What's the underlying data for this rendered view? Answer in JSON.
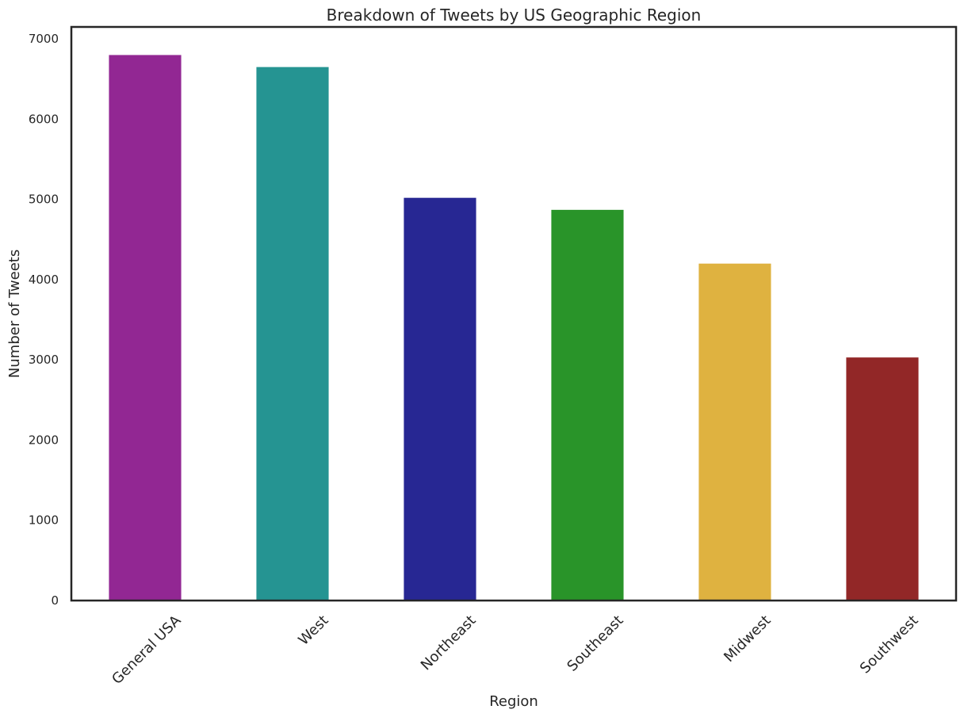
{
  "chart_data": {
    "type": "bar",
    "title": "Breakdown of Tweets by US Geographic Region",
    "xlabel": "Region",
    "ylabel": "Number of Tweets",
    "categories": [
      "General USA",
      "West",
      "Northeast",
      "Southeast",
      "Midwest",
      "Southwest"
    ],
    "values": [
      6800,
      6650,
      5020,
      4870,
      4200,
      3030
    ],
    "colors": [
      "#922793",
      "#259492",
      "#272793",
      "#299429",
      "#dfb240",
      "#922727"
    ],
    "ylim": [
      0,
      7150
    ],
    "yticks": [
      0,
      1000,
      2000,
      3000,
      4000,
      5000,
      6000,
      7000
    ],
    "ytick_labels": [
      "0",
      "1000",
      "2000",
      "3000",
      "4000",
      "5000",
      "6000",
      "7000"
    ],
    "grid": false,
    "legend": "none",
    "xtick_rotation": 45
  }
}
